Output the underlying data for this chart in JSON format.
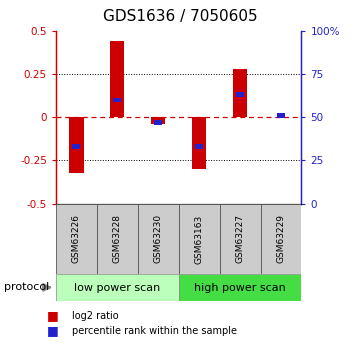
{
  "title": "GDS1636 / 7050605",
  "samples": [
    "GSM63226",
    "GSM63228",
    "GSM63230",
    "GSM63163",
    "GSM63227",
    "GSM63229"
  ],
  "log2_ratio": [
    -0.32,
    0.44,
    -0.04,
    -0.3,
    0.28,
    0.0
  ],
  "percentile_rank": [
    33,
    60,
    47,
    33,
    63,
    51
  ],
  "protocol_groups": [
    {
      "label": "low power scan",
      "n_samples": 3,
      "color": "#bbffbb"
    },
    {
      "label": "high power scan",
      "n_samples": 3,
      "color": "#44dd44"
    }
  ],
  "ylim_left": [
    -0.5,
    0.5
  ],
  "ylim_right": [
    0,
    100
  ],
  "red_bar_color": "#cc0000",
  "blue_bar_color": "#2222cc",
  "dashed_zero_color": "#cc0000",
  "left_axis_color": "#cc0000",
  "right_axis_color": "#2222cc",
  "sample_box_color": "#cccccc",
  "title_fontsize": 11,
  "tick_fontsize": 7.5,
  "sample_fontsize": 6.5,
  "proto_fontsize": 8,
  "legend_fontsize": 7
}
